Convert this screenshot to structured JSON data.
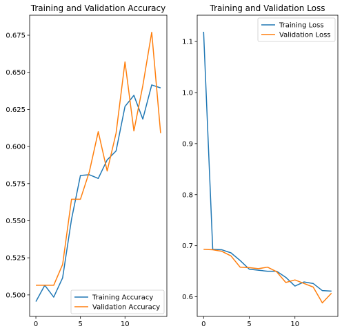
{
  "chart_data": [
    {
      "type": "line",
      "title": "Training and Validation Accuracy",
      "xlabel": "",
      "ylabel": "",
      "xlim": [
        -0.7,
        14.7
      ],
      "ylim": [
        0.4855,
        0.6885
      ],
      "xticks": [
        0,
        5,
        10
      ],
      "yticks": [
        0.5,
        0.525,
        0.55,
        0.575,
        0.6,
        0.625,
        0.65,
        0.675
      ],
      "ytick_labels": [
        "0.500",
        "0.525",
        "0.550",
        "0.575",
        "0.600",
        "0.625",
        "0.650",
        "0.675"
      ],
      "grid": false,
      "legend_position": "lower-right",
      "x": [
        0,
        1,
        2,
        3,
        4,
        5,
        6,
        7,
        8,
        9,
        10,
        11,
        12,
        13,
        14
      ],
      "series": [
        {
          "name": "Training Accuracy",
          "color": "#1f77b4",
          "values": [
            0.4955,
            0.5065,
            0.4985,
            0.5115,
            0.551,
            0.5805,
            0.581,
            0.5785,
            0.591,
            0.597,
            0.627,
            0.6345,
            0.6185,
            0.6415,
            0.6395
          ]
        },
        {
          "name": "Validation Accuracy",
          "color": "#ff7f0e",
          "values": [
            0.5065,
            0.5065,
            0.5065,
            0.5205,
            0.5645,
            0.5645,
            0.583,
            0.61,
            0.5835,
            0.609,
            0.657,
            0.6105,
            0.641,
            0.677,
            0.609
          ]
        }
      ]
    },
    {
      "type": "line",
      "title": "Training and Validation Loss",
      "xlabel": "",
      "ylabel": "",
      "xlim": [
        -0.7,
        14.7
      ],
      "ylim": [
        0.5615,
        1.1515
      ],
      "xticks": [
        0,
        5,
        10
      ],
      "yticks": [
        0.6,
        0.7,
        0.8,
        0.9,
        1.0,
        1.1
      ],
      "ytick_labels": [
        "0.6",
        "0.7",
        "0.8",
        "0.9",
        "1.0",
        "1.1"
      ],
      "grid": false,
      "legend_position": "upper-right",
      "x": [
        0,
        1,
        2,
        3,
        4,
        5,
        6,
        7,
        8,
        9,
        10,
        11,
        12,
        13,
        14
      ],
      "series": [
        {
          "name": "Training Loss",
          "color": "#1f77b4",
          "values": [
            1.119,
            0.693,
            0.692,
            0.686,
            0.671,
            0.654,
            0.652,
            0.65,
            0.65,
            0.638,
            0.621,
            0.629,
            0.626,
            0.612,
            0.611
          ]
        },
        {
          "name": "Validation Loss",
          "color": "#ff7f0e",
          "values": [
            0.693,
            0.692,
            0.689,
            0.68,
            0.658,
            0.657,
            0.655,
            0.658,
            0.649,
            0.628,
            0.633,
            0.626,
            0.619,
            0.588,
            0.607
          ]
        }
      ]
    }
  ]
}
